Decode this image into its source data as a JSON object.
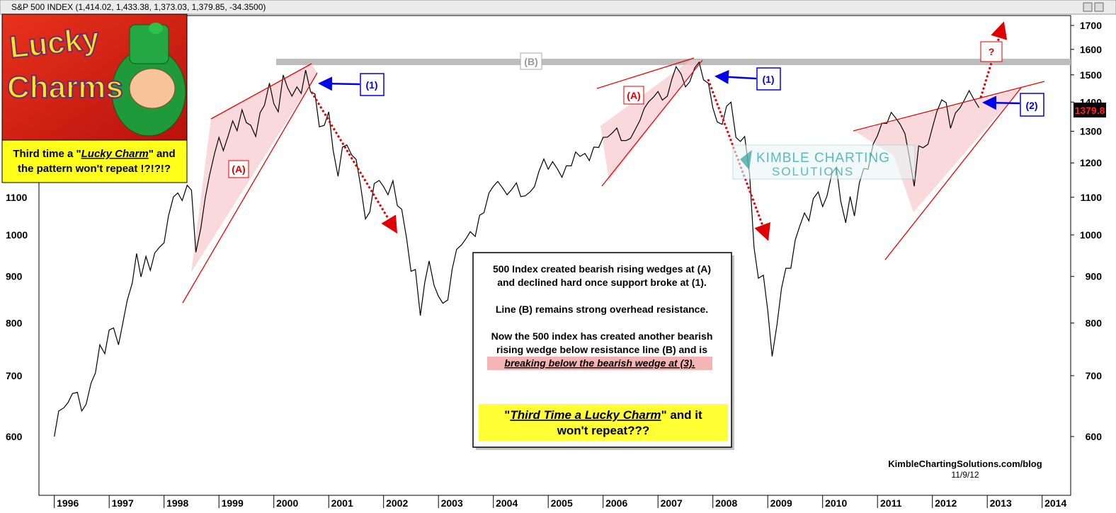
{
  "header": "S&P 500 INDEX (1,414.02, 1,433.38, 1,373.03, 1,379.85, -34.3500)",
  "logo": {
    "line1": "Lucky",
    "line2": "Charms"
  },
  "callout": {
    "parts": [
      "Third time a \"",
      "Lucky Charm",
      "\" and",
      "the pattern won't repeat !?!?!?"
    ]
  },
  "chart_data": {
    "type": "line",
    "log_scale": true,
    "color": "#000000",
    "xlim": [
      1995.72,
      2014.52
    ],
    "xticks": [
      1996,
      1997,
      1998,
      1999,
      2000,
      2001,
      2002,
      2003,
      2004,
      2005,
      2006,
      2007,
      2008,
      2009,
      2010,
      2011,
      2012,
      2013,
      2014
    ],
    "ylim": [
      517,
      1743
    ],
    "yticks": [
      600,
      700,
      800,
      900,
      1000,
      1100,
      1200,
      1300,
      1400,
      1500,
      1600,
      1700
    ],
    "x": [
      1996.0,
      1996.08,
      1996.17,
      1996.25,
      1996.33,
      1996.42,
      1996.5,
      1996.58,
      1996.67,
      1996.75,
      1996.83,
      1996.92,
      1997.0,
      1997.08,
      1997.17,
      1997.25,
      1997.33,
      1997.42,
      1997.5,
      1997.58,
      1997.67,
      1997.75,
      1997.83,
      1997.92,
      1998.0,
      1998.08,
      1998.17,
      1998.25,
      1998.33,
      1998.42,
      1998.5,
      1998.58,
      1998.67,
      1998.75,
      1998.83,
      1998.92,
      1999.0,
      1999.08,
      1999.17,
      1999.25,
      1999.33,
      1999.42,
      1999.5,
      1999.58,
      1999.67,
      1999.75,
      1999.83,
      1999.92,
      2000.0,
      2000.08,
      2000.17,
      2000.25,
      2000.33,
      2000.42,
      2000.5,
      2000.58,
      2000.67,
      2000.75,
      2000.83,
      2000.92,
      2001.0,
      2001.08,
      2001.17,
      2001.25,
      2001.33,
      2001.42,
      2001.5,
      2001.58,
      2001.67,
      2001.75,
      2001.83,
      2001.92,
      2002.0,
      2002.08,
      2002.17,
      2002.25,
      2002.33,
      2002.42,
      2002.5,
      2002.58,
      2002.67,
      2002.75,
      2002.83,
      2002.92,
      2003.0,
      2003.08,
      2003.17,
      2003.25,
      2003.33,
      2003.42,
      2003.5,
      2003.58,
      2003.67,
      2003.75,
      2003.83,
      2003.92,
      2004.0,
      2004.08,
      2004.17,
      2004.25,
      2004.33,
      2004.42,
      2004.5,
      2004.58,
      2004.67,
      2004.75,
      2004.83,
      2004.92,
      2005.0,
      2005.08,
      2005.17,
      2005.25,
      2005.33,
      2005.42,
      2005.5,
      2005.58,
      2005.67,
      2005.75,
      2005.83,
      2005.92,
      2006.0,
      2006.08,
      2006.17,
      2006.25,
      2006.33,
      2006.42,
      2006.5,
      2006.58,
      2006.67,
      2006.75,
      2006.83,
      2006.92,
      2007.0,
      2007.08,
      2007.17,
      2007.25,
      2007.33,
      2007.42,
      2007.5,
      2007.58,
      2007.67,
      2007.75,
      2007.83,
      2007.92,
      2008.0,
      2008.08,
      2008.17,
      2008.25,
      2008.33,
      2008.42,
      2008.5,
      2008.58,
      2008.67,
      2008.75,
      2008.83,
      2008.92,
      2009.0,
      2009.08,
      2009.17,
      2009.25,
      2009.33,
      2009.42,
      2009.5,
      2009.58,
      2009.67,
      2009.75,
      2009.83,
      2009.92,
      2010.0,
      2010.08,
      2010.17,
      2010.25,
      2010.33,
      2010.42,
      2010.5,
      2010.58,
      2010.67,
      2010.75,
      2010.83,
      2010.92,
      2011.0,
      2011.08,
      2011.17,
      2011.25,
      2011.33,
      2011.42,
      2011.5,
      2011.58,
      2011.67,
      2011.75,
      2011.83,
      2011.92,
      2012.0,
      2012.08,
      2012.17,
      2012.25,
      2012.33,
      2012.42,
      2012.5,
      2012.58,
      2012.67,
      2012.75,
      2012.85
    ],
    "values": [
      600,
      640,
      645,
      654,
      669,
      671,
      640,
      651,
      687,
      705,
      757,
      740,
      786,
      790,
      757,
      801,
      848,
      885,
      954,
      899,
      947,
      914,
      955,
      970,
      980,
      1049,
      1101,
      1112,
      1091,
      1134,
      1120,
      957,
      1017,
      1098,
      1164,
      1229,
      1280,
      1238,
      1286,
      1335,
      1302,
      1373,
      1329,
      1320,
      1283,
      1363,
      1389,
      1469,
      1394,
      1366,
      1499,
      1452,
      1421,
      1455,
      1431,
      1518,
      1437,
      1429,
      1315,
      1320,
      1366,
      1240,
      1160,
      1249,
      1256,
      1224,
      1211,
      1134,
      1041,
      1060,
      1139,
      1148,
      1130,
      1107,
      1147,
      1077,
      1067,
      990,
      912,
      916,
      815,
      886,
      936,
      880,
      856,
      841,
      848,
      917,
      964,
      975,
      990,
      1008,
      996,
      1051,
      1058,
      1112,
      1131,
      1145,
      1126,
      1107,
      1121,
      1141,
      1102,
      1104,
      1115,
      1130,
      1174,
      1212,
      1181,
      1204,
      1181,
      1157,
      1191,
      1191,
      1234,
      1220,
      1229,
      1207,
      1249,
      1248,
      1280,
      1281,
      1295,
      1311,
      1270,
      1270,
      1277,
      1304,
      1336,
      1378,
      1401,
      1418,
      1438,
      1407,
      1421,
      1482,
      1531,
      1503,
      1455,
      1474,
      1527,
      1549,
      1481,
      1468,
      1379,
      1331,
      1323,
      1386,
      1400,
      1280,
      1267,
      1283,
      1166,
      969,
      896,
      903,
      826,
      735,
      798,
      873,
      919,
      919,
      987,
      1021,
      1057,
      1036,
      1096,
      1115,
      1074,
      1104,
      1169,
      1187,
      1089,
      1031,
      1102,
      1049,
      1141,
      1183,
      1181,
      1258,
      1286,
      1327,
      1326,
      1364,
      1345,
      1321,
      1292,
      1219,
      1131,
      1253,
      1247,
      1258,
      1312,
      1366,
      1408,
      1398,
      1310,
      1362,
      1379,
      1406,
      1441,
      1412,
      1379.85
    ],
    "price_label": "1379.8",
    "annotations": {
      "wedge_labels": [
        "(A)",
        "(A)"
      ],
      "break_labels": [
        "(1)",
        "(1)",
        "(2)"
      ],
      "resistance_label": "(B)",
      "question": "?",
      "note_lines": [
        "500 Index created bearish rising wedges at (A)",
        "and declined hard once support broke at (1).",
        "Line (B) remains strong overhead resistance.",
        "Now the 500 index has created another bearish",
        "rising wedge below resistance line (B) and is"
      ],
      "emphasis": "breaking below the bearish wedge at (3).",
      "conclusion": [
        "\"",
        "Third Time a Lucky Charm",
        "\" and it",
        "won't repeat???"
      ],
      "watermark": [
        "KIMBLE CHARTING",
        "SOLUTIONS"
      ],
      "footer": [
        "KimbleChartingSolutions.com/blog",
        "11/9/12"
      ]
    }
  }
}
